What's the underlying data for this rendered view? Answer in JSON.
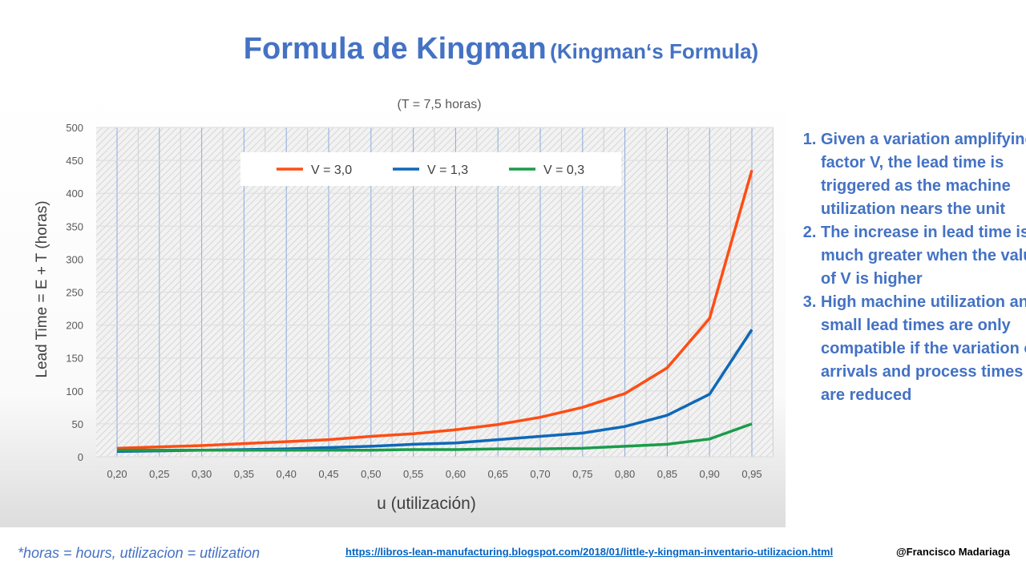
{
  "slide": {
    "title": "Formula de Kingman",
    "title_en": "(Kingman‘s Formula)",
    "notes": [
      "Given a variation amplifying factor V, the lead time is triggered as the machine utilization nears the unit",
      "The increase in lead time is much greater when the value of V is higher",
      "High machine utilization and small lead times are only compatible if the variation of arrivals and process times are reduced"
    ],
    "footnote": "*horas = hours,   utilizacion = utilization",
    "link": "https://libros-lean-manufacturing.blogspot.com/2018/01/little-y-kingman-inventario-utilizacion.html",
    "author": "@Francisco Madariaga"
  },
  "chart_data": {
    "type": "line",
    "title": "(T = 7,5 horas)",
    "xlabel": "u (utilización)",
    "ylabel": "Lead Time = E + T  (horas)",
    "x": [
      "0,20",
      "0,25",
      "0,30",
      "0,35",
      "0,40",
      "0,45",
      "0,50",
      "0,55",
      "0,60",
      "0,65",
      "0,70",
      "0,75",
      "0,80",
      "0,85",
      "0,90",
      "0,95"
    ],
    "ylim": [
      0,
      500
    ],
    "yticks": [
      0,
      50,
      100,
      150,
      200,
      250,
      300,
      350,
      400,
      450,
      500
    ],
    "grid": true,
    "legend_position": "top",
    "series": [
      {
        "name": "V = 3,0",
        "color": "#ff4d14",
        "values": [
          13,
          15,
          17,
          20,
          23,
          26,
          31,
          35,
          41,
          49,
          60,
          75,
          96,
          135,
          210,
          435
        ]
      },
      {
        "name": "V = 1,3",
        "color": "#0f68b8",
        "values": [
          8,
          9,
          10,
          11,
          12,
          14,
          16,
          19,
          21,
          26,
          31,
          36,
          46,
          63,
          95,
          193
        ]
      },
      {
        "name": "V = 0,3",
        "color": "#1a9c4a",
        "values": [
          10,
          10,
          10,
          10,
          10,
          10,
          10,
          11,
          11,
          12,
          12,
          13,
          16,
          19,
          27,
          50
        ]
      }
    ]
  }
}
